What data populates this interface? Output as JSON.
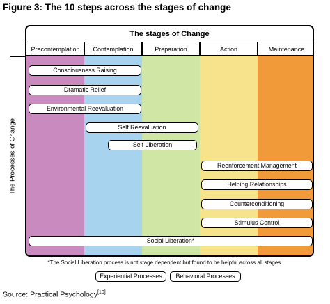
{
  "figure_title": "Figure 3: The 10 steps across the stages of change",
  "diagram": {
    "title": "The stages of Change",
    "side_label": "The Processes of Change",
    "stages": [
      {
        "label": "Precontemplation",
        "color": "#c98bbf"
      },
      {
        "label": "Contemplation",
        "color": "#a8d3ee"
      },
      {
        "label": "Preparation",
        "color": "#cfe6a4"
      },
      {
        "label": "Action",
        "color": "#f7e38c"
      },
      {
        "label": "Maintenance",
        "color": "#f09a3a"
      }
    ],
    "processes": [
      {
        "label": "Consciousness Raising"
      },
      {
        "label": "Dramatic Relief"
      },
      {
        "label": "Environmental Reevaluation"
      },
      {
        "label": "Self Reevaluation"
      },
      {
        "label": "Self Liberation"
      },
      {
        "label": "Reenforcement Management"
      },
      {
        "label": "Helping Relationships"
      },
      {
        "label": "Counterconditioning"
      },
      {
        "label": "Stimulus Control"
      },
      {
        "label": "Social Liberation*"
      }
    ]
  },
  "footnote": "*The Social Liberation process is not stage dependent but found to be helpful across all stages.",
  "legend": {
    "experiential": "Experiential Processes",
    "behavioral": "Behavioral Processes"
  },
  "source": {
    "text": "Source: Practical Psychology",
    "ref": "[10]"
  }
}
